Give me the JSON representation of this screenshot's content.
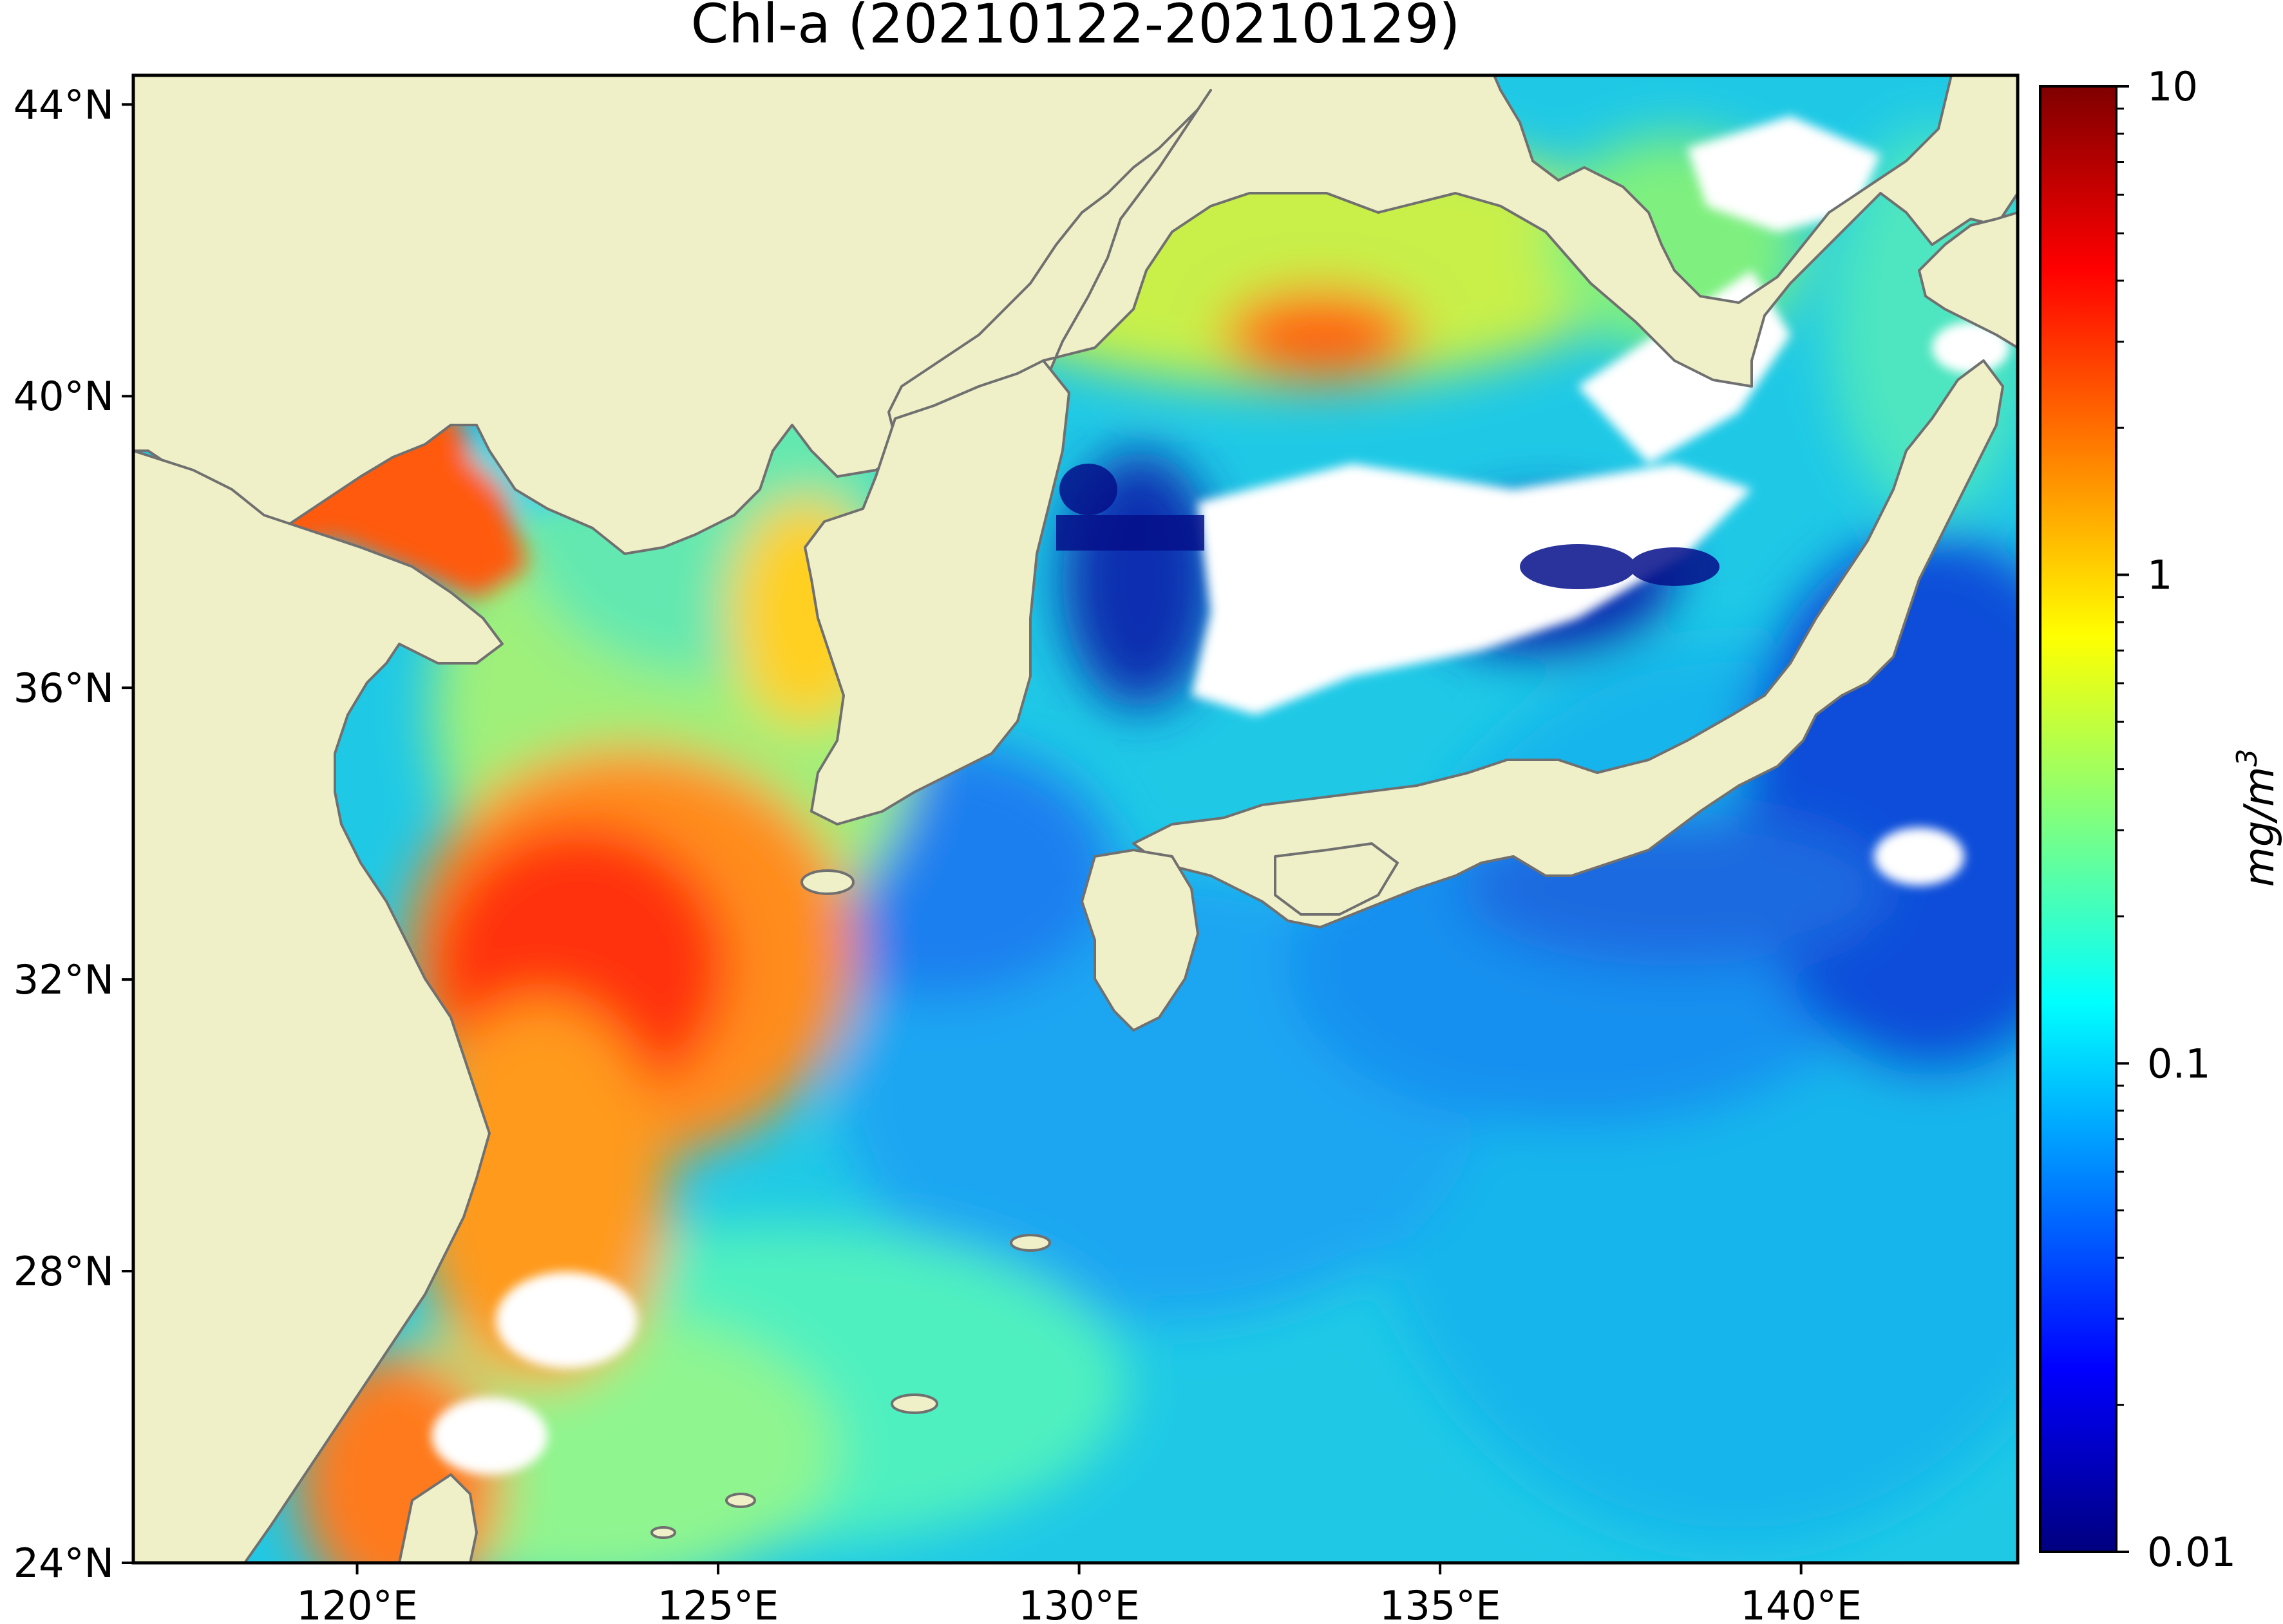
{
  "title": "Chl-a (20210122-20210129)",
  "axes": {
    "x_ticks": [
      "120°E",
      "125°E",
      "130°E",
      "135°E",
      "140°E"
    ],
    "y_ticks": [
      "44°N",
      "40°N",
      "36°N",
      "32°N",
      "28°N",
      "24°N"
    ],
    "lon_range": [
      116.9,
      143.0
    ],
    "lat_range": [
      24.0,
      44.4
    ],
    "x_tick_values": [
      120,
      125,
      130,
      135,
      140
    ],
    "y_tick_values": [
      44,
      40,
      36,
      32,
      28,
      24
    ]
  },
  "colorbar": {
    "label": "mg/m",
    "label_sup": "3",
    "scale": "log",
    "ticks": [
      "10",
      "1",
      "0.1",
      "0.01"
    ],
    "tick_values": [
      10,
      1,
      0.1,
      0.01
    ],
    "colormap": "jet",
    "colormap_stops": [
      "#00007f",
      "#0000ff",
      "#007fff",
      "#00ffff",
      "#7fff7f",
      "#ffff00",
      "#ff7f00",
      "#ff0000",
      "#7f0000"
    ]
  },
  "colors": {
    "land": "#f0f0c8",
    "coastline": "#707070",
    "cloud_mask": "#ffffff"
  }
}
